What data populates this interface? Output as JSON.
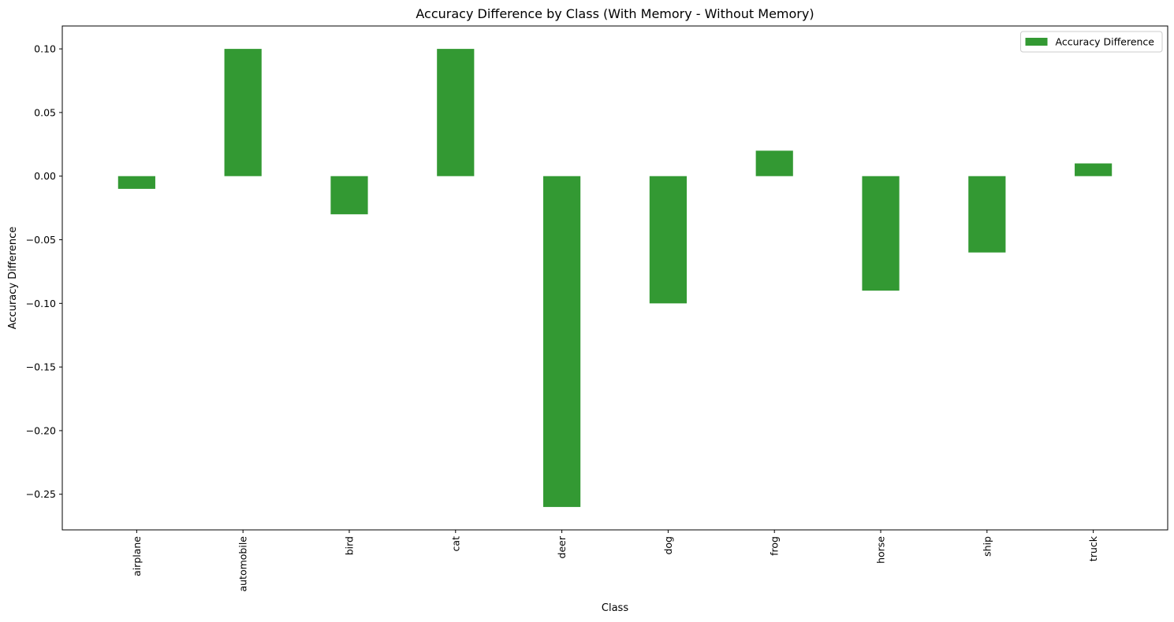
{
  "chart_data": {
    "type": "bar",
    "title": "Accuracy Difference by Class (With Memory - Without Memory)",
    "xlabel": "Class",
    "ylabel": "Accuracy Difference",
    "categories": [
      "airplane",
      "automobile",
      "bird",
      "cat",
      "deer",
      "dog",
      "frog",
      "horse",
      "ship",
      "truck"
    ],
    "series": [
      {
        "name": "Accuracy Difference",
        "color": "#339933",
        "values": [
          -0.01,
          0.1,
          -0.03,
          0.1,
          -0.26,
          -0.1,
          0.02,
          -0.09,
          -0.06,
          0.01
        ]
      }
    ],
    "ylim": [
      -0.278,
      0.118
    ],
    "yticks": [
      0.1,
      0.05,
      0.0,
      -0.05,
      -0.1,
      -0.15,
      -0.2,
      -0.25
    ],
    "ytick_labels": [
      "0.10",
      "0.05",
      "0.00",
      "−0.05",
      "−0.10",
      "−0.15",
      "−0.20",
      "−0.25"
    ],
    "x_tick_rotation": 90,
    "grid": false,
    "legend": "top-right"
  }
}
